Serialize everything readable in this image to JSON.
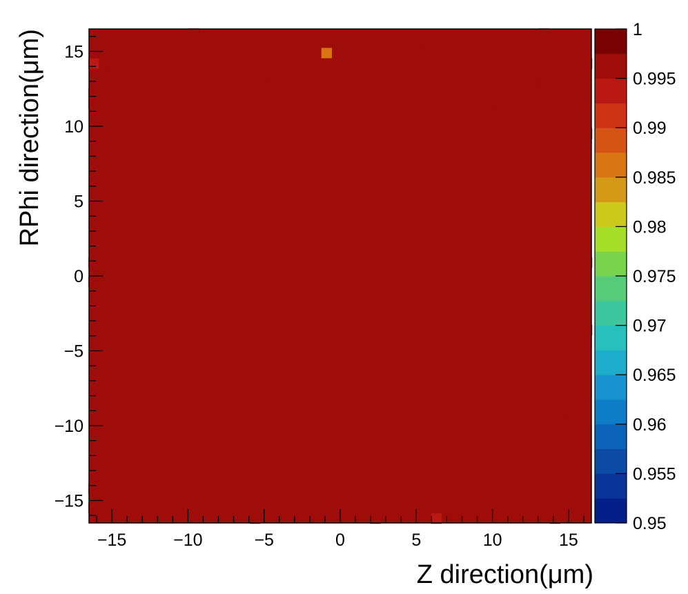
{
  "chart_data": {
    "type": "heatmap",
    "title": "",
    "xlabel": "Z direction(μm)",
    "ylabel": "RPhi direction(μm)",
    "xlim": [
      -16.5,
      16.5
    ],
    "ylim": [
      -16.5,
      16.5
    ],
    "grid": false,
    "x_ticks": [
      -15,
      -10,
      -5,
      0,
      5,
      10,
      15
    ],
    "x_tick_labels": [
      "−15",
      "−10",
      "−5",
      "0",
      "5",
      "10",
      "15"
    ],
    "y_ticks": [
      -15,
      -10,
      -5,
      0,
      5,
      10,
      15
    ],
    "y_tick_labels": [
      "−15",
      "−10",
      "−5",
      "0",
      "5",
      "10",
      "15"
    ],
    "bins": {
      "nx": 49,
      "ny": 49,
      "bin_width": 0.6735
    },
    "default_value": 0.9999,
    "cells": [
      [
        -9.6,
        16.2,
        0.998
      ],
      [
        -1.6,
        15.5,
        0.998
      ],
      [
        -0.9,
        14.9,
        0.989
      ],
      [
        -16.2,
        14.2,
        0.997
      ],
      [
        -12.1,
        14.9,
        0.998
      ],
      [
        -6.3,
        14.9,
        0.998
      ],
      [
        5.0,
        14.9,
        0.998
      ],
      [
        5.6,
        15.5,
        0.9985
      ],
      [
        13.4,
        16.2,
        0.9985
      ],
      [
        14.1,
        15.5,
        0.998
      ],
      [
        15.5,
        15.5,
        0.998
      ],
      [
        8.3,
        14.2,
        0.9985
      ],
      [
        9.0,
        14.2,
        0.998
      ],
      [
        16.2,
        14.2,
        0.998
      ],
      [
        15.5,
        14.2,
        0.9985
      ],
      [
        -12.8,
        14.2,
        0.9985
      ],
      [
        -15.5,
        13.6,
        0.998
      ],
      [
        -14.8,
        13.6,
        0.998
      ],
      [
        -4.3,
        13.6,
        0.9985
      ],
      [
        13.4,
        13.6,
        0.998
      ],
      [
        -5.0,
        12.9,
        0.998
      ],
      [
        1.6,
        12.9,
        0.998
      ],
      [
        12.8,
        12.9,
        0.998
      ],
      [
        14.8,
        12.9,
        0.998
      ],
      [
        -16.2,
        12.2,
        0.9985
      ],
      [
        -15.5,
        12.2,
        0.9985
      ],
      [
        -11.5,
        12.2,
        0.9985
      ],
      [
        5.6,
        12.2,
        0.9985
      ],
      [
        10.9,
        12.2,
        0.9985
      ],
      [
        12.8,
        12.2,
        0.998
      ],
      [
        14.8,
        12.2,
        0.998
      ],
      [
        -16.2,
        11.5,
        0.998
      ],
      [
        -13.5,
        11.5,
        0.998
      ],
      [
        -9.0,
        11.5,
        0.998
      ],
      [
        8.3,
        11.5,
        0.9985
      ],
      [
        10.3,
        11.5,
        0.998
      ],
      [
        -14.1,
        10.9,
        0.9985
      ],
      [
        -0.9,
        10.9,
        0.998
      ],
      [
        11.6,
        10.9,
        0.9985
      ],
      [
        -12.1,
        10.2,
        0.998
      ],
      [
        3.6,
        10.2,
        0.998
      ],
      [
        6.3,
        10.2,
        0.9985
      ],
      [
        10.9,
        10.2,
        0.9985
      ],
      [
        -10.3,
        9.5,
        0.9985
      ],
      [
        12.2,
        9.5,
        0.998
      ],
      [
        16.2,
        9.5,
        0.9985
      ],
      [
        -5.6,
        8.9,
        0.9985
      ],
      [
        9.0,
        8.9,
        0.9985
      ],
      [
        -6.3,
        8.2,
        0.998
      ],
      [
        -5.6,
        7.5,
        0.998
      ],
      [
        9.6,
        7.5,
        0.9985
      ],
      [
        -2.9,
        6.9,
        0.998
      ],
      [
        14.1,
        6.9,
        0.9985
      ],
      [
        -15.5,
        6.2,
        0.998
      ],
      [
        -12.1,
        6.2,
        0.998
      ],
      [
        -11.5,
        6.2,
        0.998
      ],
      [
        -8.3,
        6.2,
        0.9985
      ],
      [
        -4.3,
        6.2,
        0.998
      ],
      [
        -1.6,
        6.2,
        0.9985
      ],
      [
        0.3,
        6.2,
        0.9985
      ],
      [
        -2.9,
        5.5,
        0.9985
      ],
      [
        -0.3,
        5.5,
        0.998
      ],
      [
        13.4,
        5.5,
        0.9985
      ],
      [
        8.3,
        4.9,
        0.9985
      ],
      [
        -14.8,
        4.2,
        0.998
      ],
      [
        2.3,
        4.2,
        0.998
      ],
      [
        -7.6,
        3.5,
        0.9985
      ],
      [
        -7.0,
        3.5,
        0.998
      ],
      [
        2.9,
        3.5,
        0.9985
      ],
      [
        -7.0,
        2.9,
        0.998
      ],
      [
        1.0,
        2.9,
        0.998
      ],
      [
        2.3,
        2.9,
        0.9985
      ],
      [
        -7.6,
        2.2,
        0.998
      ],
      [
        -5.6,
        2.2,
        0.998
      ],
      [
        -0.3,
        2.2,
        0.9985
      ],
      [
        -3.6,
        1.6,
        0.9985
      ],
      [
        7.6,
        1.6,
        0.998
      ],
      [
        -10.3,
        1.6,
        0.998
      ],
      [
        -16.2,
        0.9,
        0.9985
      ],
      [
        -15.5,
        0.9,
        0.998
      ],
      [
        -10.3,
        0.9,
        0.998
      ],
      [
        -1.0,
        0.9,
        0.9985
      ],
      [
        16.2,
        0.9,
        0.998
      ],
      [
        -7.0,
        0.2,
        0.9985
      ],
      [
        -5.0,
        0.2,
        0.9985
      ],
      [
        -16.2,
        -0.4,
        0.9985
      ],
      [
        2.9,
        -0.4,
        0.9985
      ],
      [
        6.3,
        -0.4,
        0.9985
      ],
      [
        -9.6,
        -1.0,
        0.9985
      ],
      [
        -11.5,
        -1.7,
        0.9985
      ],
      [
        4.3,
        -1.7,
        0.998
      ],
      [
        5.0,
        -1.7,
        0.998
      ],
      [
        11.6,
        -1.7,
        0.998
      ],
      [
        13.6,
        -1.7,
        0.9985
      ],
      [
        -14.8,
        -2.3,
        0.998
      ],
      [
        10.3,
        -2.3,
        0.998
      ],
      [
        10.9,
        -2.3,
        0.9985
      ],
      [
        -1.6,
        -3.0,
        0.9985
      ],
      [
        -1.0,
        -3.0,
        0.998
      ],
      [
        4.3,
        -3.6,
        0.998
      ],
      [
        16.2,
        -3.6,
        0.9985
      ],
      [
        -10.3,
        -4.3,
        0.998
      ],
      [
        -9.6,
        -4.3,
        0.9985
      ],
      [
        5.6,
        -4.3,
        0.9985
      ],
      [
        -13.5,
        -5.7,
        0.998
      ],
      [
        -10.3,
        -5.7,
        0.998
      ],
      [
        -1.0,
        -5.7,
        0.998
      ],
      [
        6.3,
        -5.7,
        0.9985
      ],
      [
        8.3,
        -5.7,
        0.9985
      ],
      [
        -7.0,
        -6.3,
        0.998
      ],
      [
        -6.3,
        -6.3,
        0.998
      ],
      [
        -3.6,
        -6.3,
        0.9985
      ],
      [
        9.6,
        -6.3,
        0.998
      ],
      [
        1.6,
        -7.0,
        0.9985
      ],
      [
        8.3,
        -7.0,
        0.9985
      ],
      [
        10.3,
        -7.0,
        0.998
      ],
      [
        10.9,
        -7.0,
        0.9985
      ],
      [
        -9.0,
        -7.6,
        0.9985
      ],
      [
        12.2,
        -7.6,
        0.998
      ],
      [
        -15.5,
        -8.3,
        0.9985
      ],
      [
        -12.1,
        -8.3,
        0.9985
      ],
      [
        -7.0,
        -8.3,
        0.9985
      ],
      [
        -2.9,
        -8.3,
        0.998
      ],
      [
        -1.0,
        -8.3,
        0.998
      ],
      [
        6.3,
        -8.3,
        0.9985
      ],
      [
        9.0,
        -8.3,
        0.998
      ],
      [
        11.6,
        -8.3,
        0.9985
      ],
      [
        15.0,
        -8.3,
        0.9985
      ],
      [
        -5.6,
        -8.9,
        0.9985
      ],
      [
        11.6,
        -8.9,
        0.998
      ],
      [
        13.4,
        -8.9,
        0.9985
      ],
      [
        -2.3,
        -9.6,
        0.998
      ],
      [
        7.6,
        -9.6,
        0.998
      ],
      [
        15.0,
        -9.6,
        0.9985
      ],
      [
        -15.5,
        -10.2,
        0.998
      ],
      [
        -14.8,
        -10.2,
        0.998
      ],
      [
        -12.8,
        -10.2,
        0.998
      ],
      [
        -9.6,
        -10.9,
        0.9985
      ],
      [
        -5.0,
        -10.9,
        0.998
      ],
      [
        6.3,
        -10.9,
        0.9985
      ],
      [
        14.1,
        -10.9,
        0.998
      ],
      [
        -14.1,
        -11.6,
        0.998
      ],
      [
        1.0,
        -11.6,
        0.9985
      ],
      [
        2.9,
        -11.6,
        0.9985
      ],
      [
        12.8,
        -11.6,
        0.998
      ],
      [
        13.4,
        -11.6,
        0.998
      ],
      [
        7.6,
        -12.2,
        0.998
      ],
      [
        8.3,
        -12.2,
        0.998
      ],
      [
        12.8,
        -12.2,
        0.998
      ],
      [
        14.1,
        -12.2,
        0.998
      ],
      [
        -4.3,
        -12.9,
        0.9985
      ],
      [
        4.3,
        -12.9,
        0.9985
      ],
      [
        7.6,
        -12.9,
        0.9985
      ],
      [
        10.3,
        -12.9,
        0.998
      ],
      [
        -1.6,
        -13.6,
        0.9985
      ],
      [
        6.3,
        -13.6,
        0.998
      ],
      [
        13.4,
        -13.6,
        0.998
      ],
      [
        -16.2,
        -14.2,
        0.998
      ],
      [
        -7.0,
        -14.2,
        0.998
      ],
      [
        2.3,
        -14.2,
        0.998
      ],
      [
        9.6,
        -14.2,
        0.9985
      ],
      [
        -11.5,
        -14.9,
        0.998
      ],
      [
        10.9,
        -14.9,
        0.998
      ],
      [
        12.2,
        -14.9,
        0.9985
      ],
      [
        -16.2,
        -15.5,
        0.998
      ],
      [
        -5.6,
        -15.5,
        0.998
      ],
      [
        -5.6,
        -16.2,
        0.9985
      ],
      [
        2.3,
        -16.2,
        0.998
      ],
      [
        6.3,
        -16.2,
        0.997
      ],
      [
        14.1,
        -16.2,
        0.998
      ]
    ],
    "colorbar": {
      "min": 0.95,
      "max": 1.0,
      "levels": 20,
      "tick_values": [
        0.95,
        0.955,
        0.96,
        0.965,
        0.97,
        0.975,
        0.98,
        0.985,
        0.99,
        0.995,
        1.0
      ],
      "tick_labels": [
        "0.95",
        "0.955",
        "0.96",
        "0.965",
        "0.97",
        "0.975",
        "0.98",
        "0.985",
        "0.99",
        "0.995",
        "1"
      ],
      "colors": [
        "#000f6e",
        "#041f88",
        "#0a3497",
        "#0c4aa6",
        "#0c63b7",
        "#0f7cc7",
        "#1893cf",
        "#1eaccb",
        "#27c0bd",
        "#3dc79f",
        "#58cb7a",
        "#79d34c",
        "#a6df2a",
        "#ccc81c",
        "#d49a17",
        "#d87614",
        "#d35414",
        "#cd3314",
        "#ba1812",
        "#9f0d0a",
        "#780302"
      ]
    }
  }
}
